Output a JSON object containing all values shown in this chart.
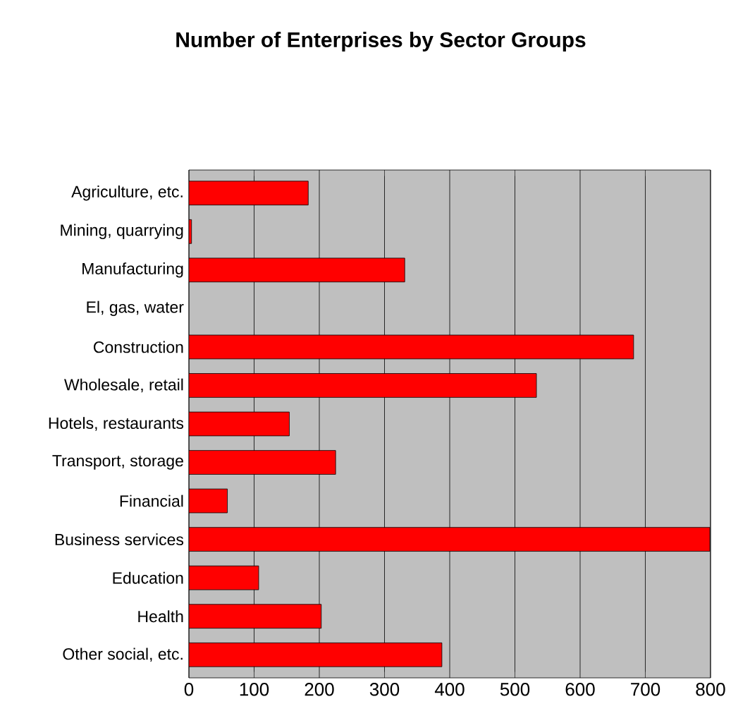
{
  "chart_data": {
    "type": "bar",
    "title": "Number of Enterprises by Sector Groups",
    "orientation": "horizontal",
    "categories": [
      "Agriculture, etc.",
      "Mining, quarrying",
      "Manufacturing",
      "El, gas, water",
      "Construction",
      "Wholesale, retail",
      "Hotels, restaurants",
      "Transport, storage",
      "Financial",
      "Business services",
      "Education",
      "Health",
      "Other social, etc."
    ],
    "values": [
      183,
      4,
      331,
      null,
      682,
      533,
      154,
      225,
      59,
      799,
      107,
      203,
      388
    ],
    "color": "#ff0000",
    "xlim": [
      0,
      800
    ],
    "xticks": [
      0,
      100,
      200,
      300,
      400,
      500,
      600,
      700,
      800
    ],
    "grid": "x"
  }
}
